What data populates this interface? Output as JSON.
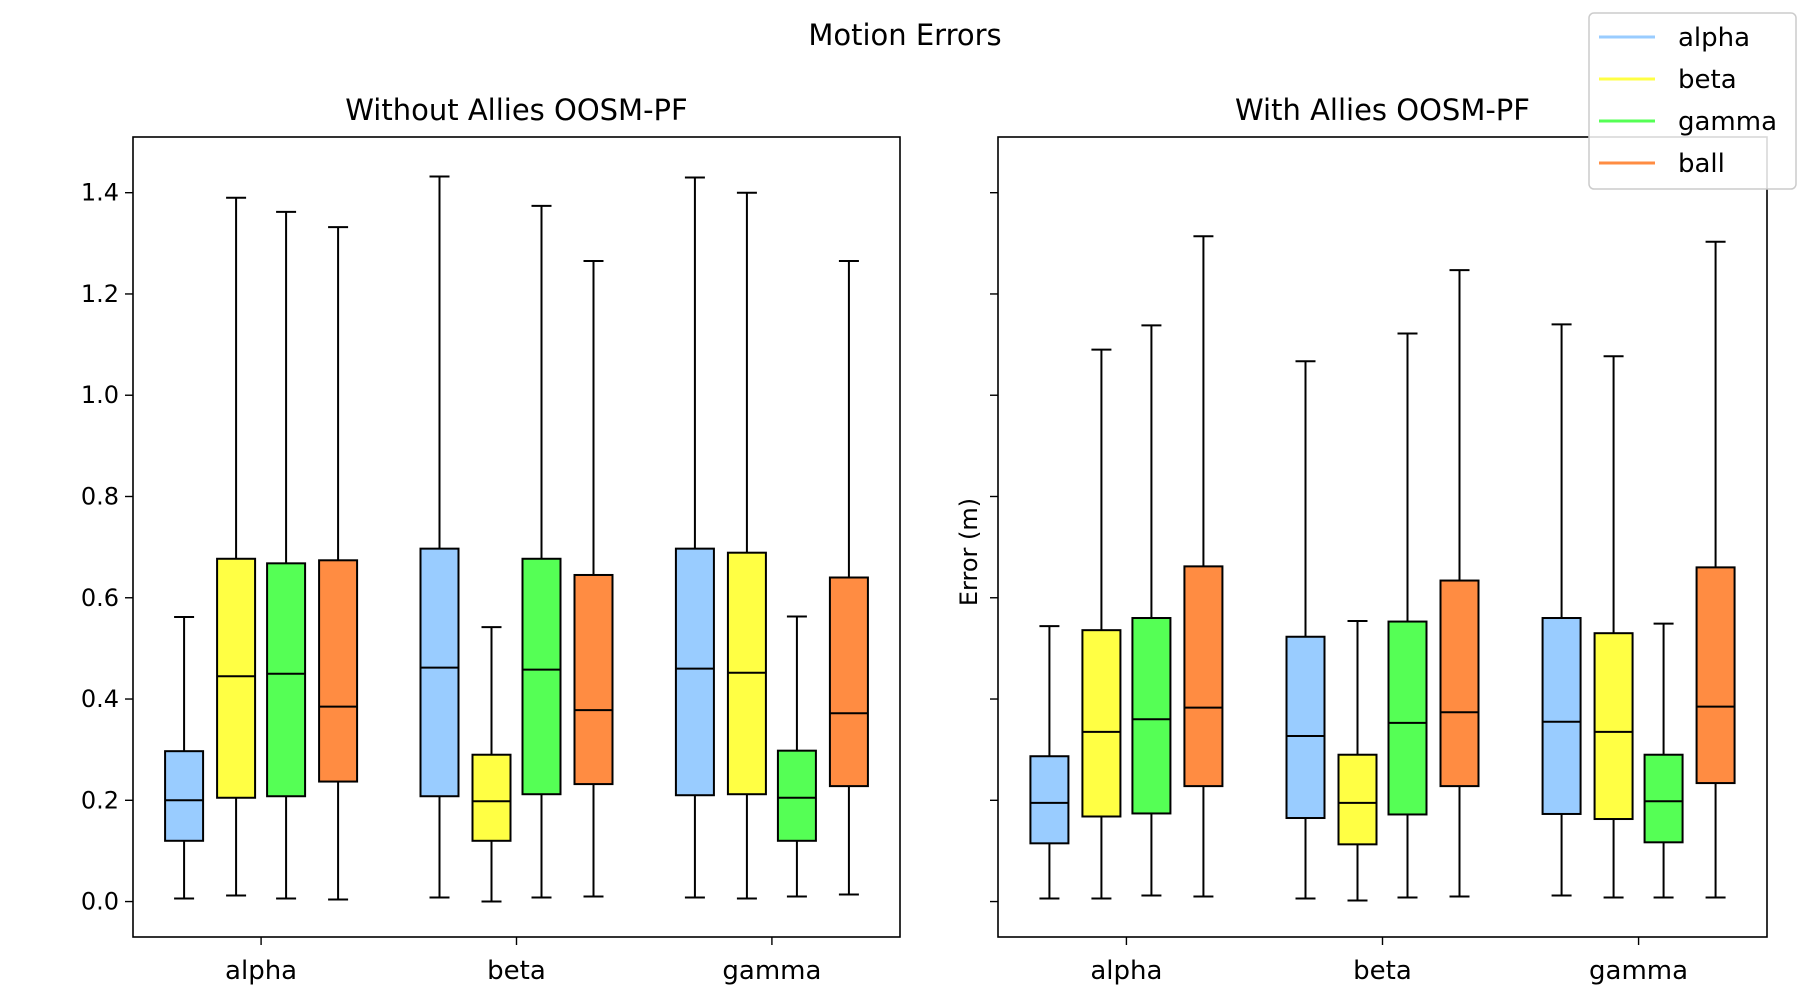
{
  "figure": {
    "title": "Motion Errors"
  },
  "legend": {
    "placement": "top-right",
    "entries": [
      {
        "label": "alpha",
        "color": "#99ccff"
      },
      {
        "label": "beta",
        "color": "#ffff44"
      },
      {
        "label": "gamma",
        "color": "#55ff55"
      },
      {
        "label": "ball",
        "color": "#ff8c42"
      }
    ]
  },
  "chart_data": [
    {
      "type": "boxplot",
      "title": "Without Allies OOSM-PF",
      "xlabel": "",
      "ylabel": "",
      "ylim": [
        -0.07,
        1.51
      ],
      "yticks": [
        "0.0",
        "0.2",
        "0.4",
        "0.6",
        "0.8",
        "1.0",
        "1.2",
        "1.4"
      ],
      "ytick_values": [
        0.0,
        0.2,
        0.4,
        0.6,
        0.8,
        1.0,
        1.2,
        1.4
      ],
      "show_ytick_labels": true,
      "categories": [
        "alpha",
        "beta",
        "gamma"
      ],
      "series": [
        {
          "name": "alpha",
          "color": "#99ccff",
          "boxes": [
            {
              "min": 0.006,
              "q1": 0.12,
              "median": 0.2,
              "q3": 0.297,
              "max": 0.562
            },
            {
              "min": 0.008,
              "q1": 0.208,
              "median": 0.462,
              "q3": 0.697,
              "max": 1.432
            },
            {
              "min": 0.008,
              "q1": 0.21,
              "median": 0.46,
              "q3": 0.697,
              "max": 1.43
            }
          ]
        },
        {
          "name": "beta",
          "color": "#ffff44",
          "boxes": [
            {
              "min": 0.012,
              "q1": 0.205,
              "median": 0.445,
              "q3": 0.677,
              "max": 1.39
            },
            {
              "min": 0.0,
              "q1": 0.12,
              "median": 0.198,
              "q3": 0.29,
              "max": 0.542
            },
            {
              "min": 0.006,
              "q1": 0.212,
              "median": 0.452,
              "q3": 0.689,
              "max": 1.4
            }
          ]
        },
        {
          "name": "gamma",
          "color": "#55ff55",
          "boxes": [
            {
              "min": 0.006,
              "q1": 0.208,
              "median": 0.45,
              "q3": 0.668,
              "max": 1.362
            },
            {
              "min": 0.008,
              "q1": 0.212,
              "median": 0.458,
              "q3": 0.677,
              "max": 1.374
            },
            {
              "min": 0.01,
              "q1": 0.12,
              "median": 0.205,
              "q3": 0.298,
              "max": 0.563
            }
          ]
        },
        {
          "name": "ball",
          "color": "#ff8c42",
          "boxes": [
            {
              "min": 0.004,
              "q1": 0.237,
              "median": 0.385,
              "q3": 0.674,
              "max": 1.332
            },
            {
              "min": 0.01,
              "q1": 0.232,
              "median": 0.378,
              "q3": 0.645,
              "max": 1.265
            },
            {
              "min": 0.014,
              "q1": 0.228,
              "median": 0.372,
              "q3": 0.64,
              "max": 1.265
            }
          ]
        }
      ]
    },
    {
      "type": "boxplot",
      "title": "With Allies OOSM-PF",
      "xlabel": "",
      "ylabel": "Error (m)",
      "ylim": [
        -0.07,
        1.51
      ],
      "ytick_values": [
        0.0,
        0.2,
        0.4,
        0.6,
        0.8,
        1.0,
        1.2,
        1.4
      ],
      "show_ytick_labels": false,
      "categories": [
        "alpha",
        "beta",
        "gamma"
      ],
      "series": [
        {
          "name": "alpha",
          "color": "#99ccff",
          "boxes": [
            {
              "min": 0.006,
              "q1": 0.115,
              "median": 0.195,
              "q3": 0.287,
              "max": 0.544
            },
            {
              "min": 0.006,
              "q1": 0.165,
              "median": 0.327,
              "q3": 0.523,
              "max": 1.067
            },
            {
              "min": 0.012,
              "q1": 0.173,
              "median": 0.355,
              "q3": 0.56,
              "max": 1.14
            }
          ]
        },
        {
          "name": "beta",
          "color": "#ffff44",
          "boxes": [
            {
              "min": 0.006,
              "q1": 0.168,
              "median": 0.335,
              "q3": 0.536,
              "max": 1.09
            },
            {
              "min": 0.002,
              "q1": 0.113,
              "median": 0.195,
              "q3": 0.29,
              "max": 0.554
            },
            {
              "min": 0.008,
              "q1": 0.163,
              "median": 0.335,
              "q3": 0.53,
              "max": 1.077
            }
          ]
        },
        {
          "name": "gamma",
          "color": "#55ff55",
          "boxes": [
            {
              "min": 0.012,
              "q1": 0.174,
              "median": 0.36,
              "q3": 0.56,
              "max": 1.138
            },
            {
              "min": 0.008,
              "q1": 0.172,
              "median": 0.353,
              "q3": 0.553,
              "max": 1.122
            },
            {
              "min": 0.008,
              "q1": 0.117,
              "median": 0.198,
              "q3": 0.29,
              "max": 0.549
            }
          ]
        },
        {
          "name": "ball",
          "color": "#ff8c42",
          "boxes": [
            {
              "min": 0.01,
              "q1": 0.228,
              "median": 0.383,
              "q3": 0.662,
              "max": 1.314
            },
            {
              "min": 0.01,
              "q1": 0.228,
              "median": 0.374,
              "q3": 0.634,
              "max": 1.247
            },
            {
              "min": 0.008,
              "q1": 0.234,
              "median": 0.385,
              "q3": 0.66,
              "max": 1.303
            }
          ]
        }
      ]
    }
  ]
}
